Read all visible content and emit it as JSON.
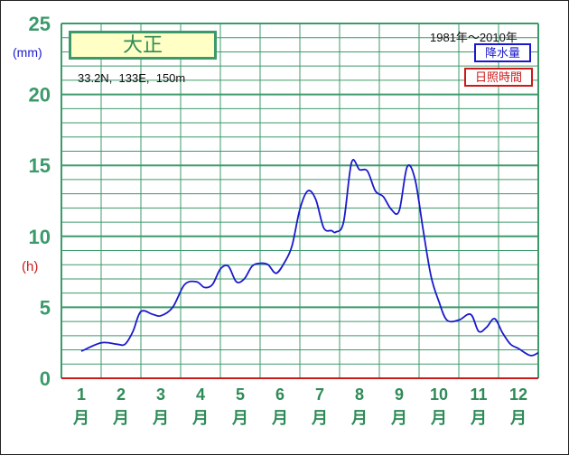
{
  "station": "大正",
  "location": "33.2N,  133E,  150m",
  "period": "1981年～2010年",
  "legend": {
    "precip": "降水量",
    "sunshine": "日照時間"
  },
  "colors": {
    "precip": "#1a1acc",
    "sunshine": "#cc1a1a",
    "grid": "#3c9a6a",
    "axis_text": "#2e8b57"
  },
  "chart_data": {
    "type": "line",
    "categories": [
      "1",
      "2",
      "3",
      "4",
      "5",
      "6",
      "7",
      "8",
      "9",
      "10",
      "11",
      "12"
    ],
    "month_suffix": "月",
    "ylim": [
      0,
      25
    ],
    "yticks": [
      "0",
      "5",
      "10",
      "15",
      "20",
      "25"
    ],
    "y_unit_left": "(mm)",
    "y_unit_right": "(h)",
    "grid": true,
    "legend_position": "top-right",
    "series": [
      {
        "name": "降水量",
        "x": [
          1.0,
          1.5,
          1.9,
          2.1,
          2.3,
          2.5,
          2.8,
          3.0,
          3.3,
          3.6,
          3.9,
          4.1,
          4.3,
          4.5,
          4.7,
          4.9,
          5.1,
          5.3,
          5.5,
          5.7,
          5.9,
          6.1,
          6.3,
          6.5,
          6.7,
          6.9,
          7.1,
          7.3,
          7.4,
          7.6,
          7.8,
          8.0,
          8.2,
          8.4,
          8.6,
          8.8,
          9.0,
          9.2,
          9.4,
          9.6,
          9.8,
          10.0,
          10.2,
          10.5,
          10.8,
          11.0,
          11.2,
          11.4,
          11.6,
          11.8,
          12.0,
          12.3,
          12.5
        ],
        "values": [
          1.9,
          2.5,
          2.4,
          2.4,
          3.3,
          4.7,
          4.5,
          4.4,
          5.0,
          6.6,
          6.8,
          6.4,
          6.6,
          7.7,
          7.9,
          6.8,
          7.0,
          7.9,
          8.1,
          8.0,
          7.4,
          8.1,
          9.3,
          11.9,
          13.2,
          12.6,
          10.6,
          10.4,
          10.3,
          11.0,
          15.2,
          14.7,
          14.6,
          13.2,
          12.8,
          11.9,
          11.8,
          14.9,
          14.0,
          10.5,
          7.2,
          5.4,
          4.1,
          4.1,
          4.5,
          3.3,
          3.6,
          4.2,
          3.2,
          2.4,
          2.1,
          1.6,
          1.8
        ]
      }
    ]
  }
}
